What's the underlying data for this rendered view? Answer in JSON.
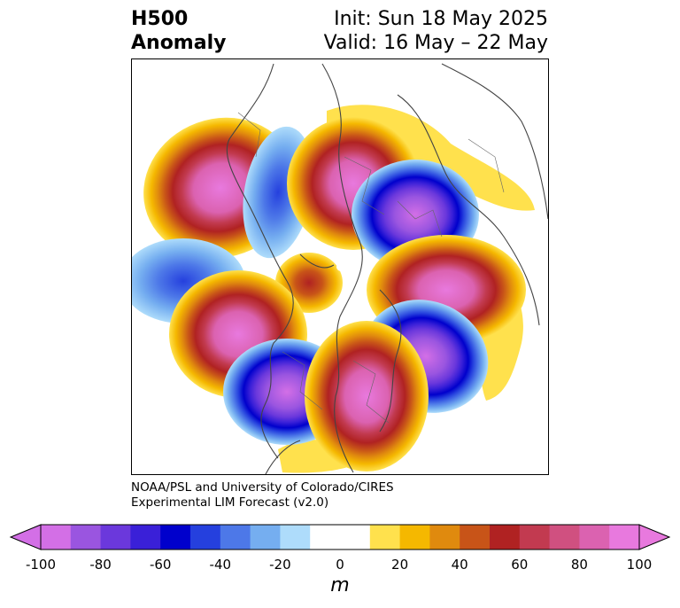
{
  "title": {
    "line1": "H500",
    "line2": "Anomaly",
    "init": "Init: Sun 18 May 2025",
    "valid": "Valid: 16 May – 22 May"
  },
  "credit": {
    "line1": "NOAA/PSL and University of Colorado/CIRES",
    "line2": "Experimental LIM Forecast (v2.0)"
  },
  "colorbar": {
    "unit": "m",
    "ticks": [
      "-100",
      "-80",
      "-60",
      "-40",
      "-20",
      "0",
      "20",
      "40",
      "60",
      "80",
      "100"
    ],
    "colors": [
      "#d36fe6",
      "#9a55e0",
      "#6b38dc",
      "#3a20d8",
      "#0000cc",
      "#2540de",
      "#4d78e8",
      "#75aef0",
      "#aedcfb",
      "#ffffff",
      "#ffffff",
      "#ffe14d",
      "#f5b800",
      "#e08a0e",
      "#c85418",
      "#b02222",
      "#c23a50",
      "#d05080",
      "#db62b0",
      "#e879de"
    ],
    "extend_low": "#d36fe6",
    "extend_high": "#e879de"
  }
}
